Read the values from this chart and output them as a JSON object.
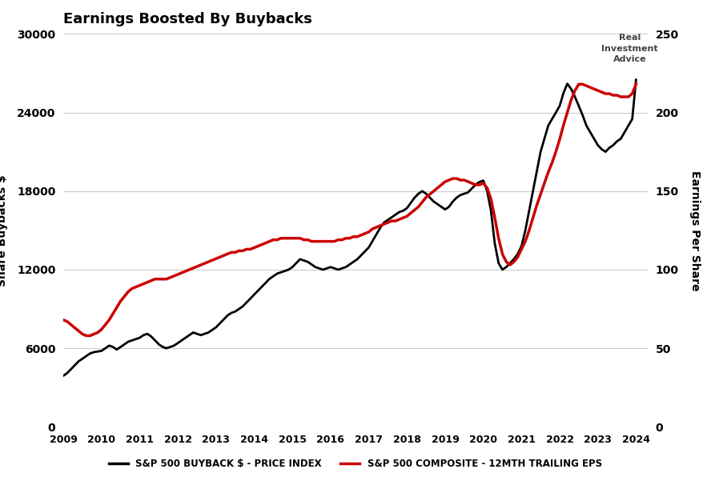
{
  "title": "Earnings Boosted By Buybacks",
  "ylabel_left": "Share Buybacks $",
  "ylabel_right": "Earnings Per Share",
  "left_ylim": [
    0,
    30000
  ],
  "right_ylim": [
    0,
    250
  ],
  "left_yticks": [
    0,
    6000,
    12000,
    18000,
    24000,
    30000
  ],
  "right_yticks": [
    0,
    50,
    100,
    150,
    200,
    250
  ],
  "background_color": "#ffffff",
  "grid_color": "#cccccc",
  "buyback_color": "#000000",
  "eps_color": "#cc0000",
  "legend1": "S&P 500 BUYBACK $ - PRICE INDEX",
  "legend2": "S&P 500 COMPOSITE - 12MTH TRAILING EPS",
  "buyback_x": [
    2009.0,
    2009.1,
    2009.2,
    2009.3,
    2009.4,
    2009.5,
    2009.6,
    2009.7,
    2009.8,
    2009.9,
    2010.0,
    2010.1,
    2010.2,
    2010.3,
    2010.4,
    2010.5,
    2010.6,
    2010.7,
    2010.8,
    2010.9,
    2011.0,
    2011.1,
    2011.2,
    2011.3,
    2011.4,
    2011.5,
    2011.6,
    2011.7,
    2011.8,
    2011.9,
    2012.0,
    2012.1,
    2012.2,
    2012.3,
    2012.4,
    2012.5,
    2012.6,
    2012.7,
    2012.8,
    2012.9,
    2013.0,
    2013.1,
    2013.2,
    2013.3,
    2013.4,
    2013.5,
    2013.6,
    2013.7,
    2013.8,
    2013.9,
    2014.0,
    2014.1,
    2014.2,
    2014.3,
    2014.4,
    2014.5,
    2014.6,
    2014.7,
    2014.8,
    2014.9,
    2015.0,
    2015.1,
    2015.2,
    2015.3,
    2015.4,
    2015.5,
    2015.6,
    2015.7,
    2015.8,
    2015.9,
    2016.0,
    2016.1,
    2016.2,
    2016.3,
    2016.4,
    2016.5,
    2016.6,
    2016.7,
    2016.8,
    2016.9,
    2017.0,
    2017.1,
    2017.2,
    2017.3,
    2017.4,
    2017.5,
    2017.6,
    2017.7,
    2017.8,
    2017.9,
    2018.0,
    2018.1,
    2018.2,
    2018.3,
    2018.4,
    2018.5,
    2018.6,
    2018.7,
    2018.8,
    2018.9,
    2019.0,
    2019.1,
    2019.2,
    2019.3,
    2019.4,
    2019.5,
    2019.6,
    2019.7,
    2019.8,
    2019.9,
    2020.0,
    2020.1,
    2020.2,
    2020.3,
    2020.4,
    2020.5,
    2020.6,
    2020.7,
    2020.8,
    2020.9,
    2021.0,
    2021.1,
    2021.2,
    2021.3,
    2021.4,
    2021.5,
    2021.6,
    2021.7,
    2021.8,
    2021.9,
    2022.0,
    2022.1,
    2022.2,
    2022.3,
    2022.4,
    2022.5,
    2022.6,
    2022.7,
    2022.8,
    2022.9,
    2023.0,
    2023.1,
    2023.2,
    2023.3,
    2023.4,
    2023.5,
    2023.6,
    2023.7,
    2023.8,
    2023.9,
    2024.0
  ],
  "buyback_y": [
    3900,
    4100,
    4400,
    4700,
    5000,
    5200,
    5400,
    5600,
    5700,
    5750,
    5800,
    6000,
    6200,
    6100,
    5900,
    6100,
    6300,
    6500,
    6600,
    6700,
    6800,
    7000,
    7100,
    6900,
    6600,
    6300,
    6100,
    6000,
    6100,
    6200,
    6400,
    6600,
    6800,
    7000,
    7200,
    7100,
    7000,
    7100,
    7200,
    7400,
    7600,
    7900,
    8200,
    8500,
    8700,
    8800,
    9000,
    9200,
    9500,
    9800,
    10100,
    10400,
    10700,
    11000,
    11300,
    11500,
    11700,
    11800,
    11900,
    12000,
    12200,
    12500,
    12800,
    12700,
    12600,
    12400,
    12200,
    12100,
    12000,
    12100,
    12200,
    12100,
    12000,
    12100,
    12200,
    12400,
    12600,
    12800,
    13100,
    13400,
    13700,
    14200,
    14700,
    15200,
    15600,
    15800,
    16000,
    16200,
    16400,
    16500,
    16700,
    17100,
    17500,
    17800,
    18000,
    17800,
    17500,
    17200,
    17000,
    16800,
    16600,
    16800,
    17200,
    17500,
    17700,
    17800,
    17900,
    18200,
    18500,
    18700,
    18800,
    18000,
    16500,
    14000,
    12500,
    12000,
    12200,
    12500,
    12800,
    13200,
    13800,
    15000,
    16500,
    18000,
    19500,
    21000,
    22000,
    23000,
    23500,
    24000,
    24500,
    25500,
    26200,
    25800,
    25200,
    24500,
    23800,
    23000,
    22500,
    22000,
    21500,
    21200,
    21000,
    21300,
    21500,
    21800,
    22000,
    22500,
    23000,
    23500,
    26500
  ],
  "eps_x": [
    2009.0,
    2009.1,
    2009.2,
    2009.3,
    2009.4,
    2009.5,
    2009.6,
    2009.7,
    2009.8,
    2009.9,
    2010.0,
    2010.1,
    2010.2,
    2010.3,
    2010.4,
    2010.5,
    2010.6,
    2010.7,
    2010.8,
    2010.9,
    2011.0,
    2011.1,
    2011.2,
    2011.3,
    2011.4,
    2011.5,
    2011.6,
    2011.7,
    2011.8,
    2011.9,
    2012.0,
    2012.1,
    2012.2,
    2012.3,
    2012.4,
    2012.5,
    2012.6,
    2012.7,
    2012.8,
    2012.9,
    2013.0,
    2013.1,
    2013.2,
    2013.3,
    2013.4,
    2013.5,
    2013.6,
    2013.7,
    2013.8,
    2013.9,
    2014.0,
    2014.1,
    2014.2,
    2014.3,
    2014.4,
    2014.5,
    2014.6,
    2014.7,
    2014.8,
    2014.9,
    2015.0,
    2015.1,
    2015.2,
    2015.3,
    2015.4,
    2015.5,
    2015.6,
    2015.7,
    2015.8,
    2015.9,
    2016.0,
    2016.1,
    2016.2,
    2016.3,
    2016.4,
    2016.5,
    2016.6,
    2016.7,
    2016.8,
    2016.9,
    2017.0,
    2017.1,
    2017.2,
    2017.3,
    2017.4,
    2017.5,
    2017.6,
    2017.7,
    2017.8,
    2017.9,
    2018.0,
    2018.1,
    2018.2,
    2018.3,
    2018.4,
    2018.5,
    2018.6,
    2018.7,
    2018.8,
    2018.9,
    2019.0,
    2019.1,
    2019.2,
    2019.3,
    2019.4,
    2019.5,
    2019.6,
    2019.7,
    2019.8,
    2019.9,
    2020.0,
    2020.1,
    2020.2,
    2020.3,
    2020.4,
    2020.5,
    2020.6,
    2020.7,
    2020.8,
    2020.9,
    2021.0,
    2021.1,
    2021.2,
    2021.3,
    2021.4,
    2021.5,
    2021.6,
    2021.7,
    2021.8,
    2021.9,
    2022.0,
    2022.1,
    2022.2,
    2022.3,
    2022.4,
    2022.5,
    2022.6,
    2022.7,
    2022.8,
    2022.9,
    2023.0,
    2023.1,
    2023.2,
    2023.3,
    2023.4,
    2023.5,
    2023.6,
    2023.7,
    2023.8,
    2023.9,
    2024.0
  ],
  "eps_y": [
    68,
    67,
    65,
    63,
    61,
    59,
    58,
    58,
    59,
    60,
    62,
    65,
    68,
    72,
    76,
    80,
    83,
    86,
    88,
    89,
    90,
    91,
    92,
    93,
    94,
    94,
    94,
    94,
    95,
    96,
    97,
    98,
    99,
    100,
    101,
    102,
    103,
    104,
    105,
    106,
    107,
    108,
    109,
    110,
    111,
    111,
    112,
    112,
    113,
    113,
    114,
    115,
    116,
    117,
    118,
    119,
    119,
    120,
    120,
    120,
    120,
    120,
    120,
    119,
    119,
    118,
    118,
    118,
    118,
    118,
    118,
    118,
    119,
    119,
    120,
    120,
    121,
    121,
    122,
    123,
    124,
    126,
    127,
    128,
    129,
    130,
    131,
    131,
    132,
    133,
    134,
    136,
    138,
    140,
    143,
    146,
    148,
    150,
    152,
    154,
    156,
    157,
    158,
    158,
    157,
    157,
    156,
    155,
    154,
    154,
    155,
    152,
    145,
    133,
    120,
    110,
    105,
    103,
    105,
    108,
    113,
    118,
    125,
    133,
    141,
    148,
    155,
    162,
    168,
    175,
    183,
    192,
    200,
    208,
    214,
    218,
    218,
    217,
    216,
    215,
    214,
    213,
    212,
    212,
    211,
    211,
    210,
    210,
    210,
    212,
    218
  ]
}
